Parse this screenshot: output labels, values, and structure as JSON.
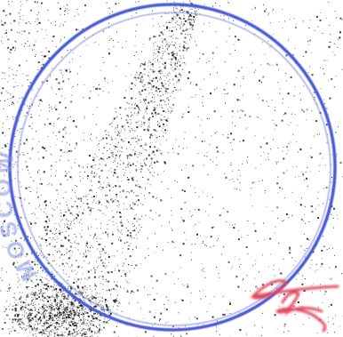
{
  "scan": {
    "paper_color": "#ffffff",
    "noise_color": "#1a1a1a",
    "description_hidden": ""
  },
  "stamp": {
    "ink_color": "#4a5bd6",
    "faint_ink_color": "#7d89e3",
    "text": "MOSCOW"
  },
  "signature": {
    "ink_color": "#e04a5e"
  }
}
